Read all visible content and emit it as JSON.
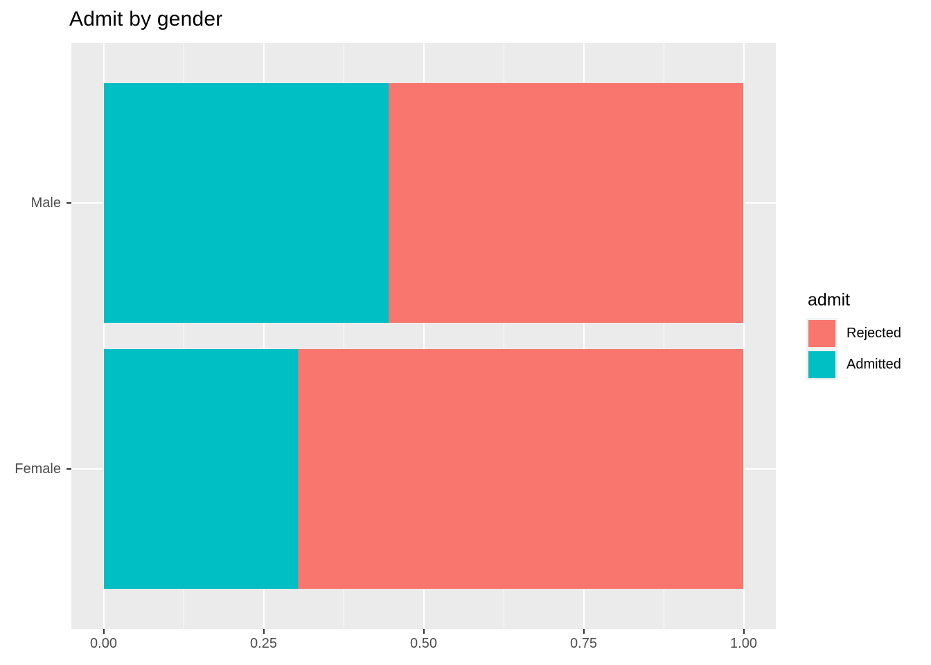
{
  "chart_data": {
    "type": "bar",
    "orientation": "horizontal",
    "stacked": true,
    "normalized": true,
    "title": "Admit by gender",
    "xlabel": "",
    "ylabel": "",
    "categories": [
      "Male",
      "Female"
    ],
    "series": [
      {
        "name": "Admitted",
        "color": "#00BFC4",
        "values": [
          0.445,
          0.304
        ]
      },
      {
        "name": "Rejected",
        "color": "#F8766D",
        "values": [
          0.555,
          0.696
        ]
      }
    ],
    "xlim": [
      0,
      1
    ],
    "x_ticks": [
      {
        "value": 0.0,
        "label": "0.00"
      },
      {
        "value": 0.25,
        "label": "0.25"
      },
      {
        "value": 0.5,
        "label": "0.50"
      },
      {
        "value": 0.75,
        "label": "0.75"
      },
      {
        "value": 1.0,
        "label": "1.00"
      }
    ],
    "grid": true,
    "legend": {
      "title": "admit",
      "position": "right",
      "entries": [
        {
          "label": "Rejected",
          "color": "#F8766D"
        },
        {
          "label": "Admitted",
          "color": "#00BFC4"
        }
      ]
    },
    "colors": {
      "panel_background": "#EBEBEB",
      "gridline": "#FFFFFF",
      "axis_text": "#4D4D4D",
      "tick_mark": "#333333",
      "legend_key_background": "#F2F2F2",
      "title_text": "#000000"
    }
  }
}
